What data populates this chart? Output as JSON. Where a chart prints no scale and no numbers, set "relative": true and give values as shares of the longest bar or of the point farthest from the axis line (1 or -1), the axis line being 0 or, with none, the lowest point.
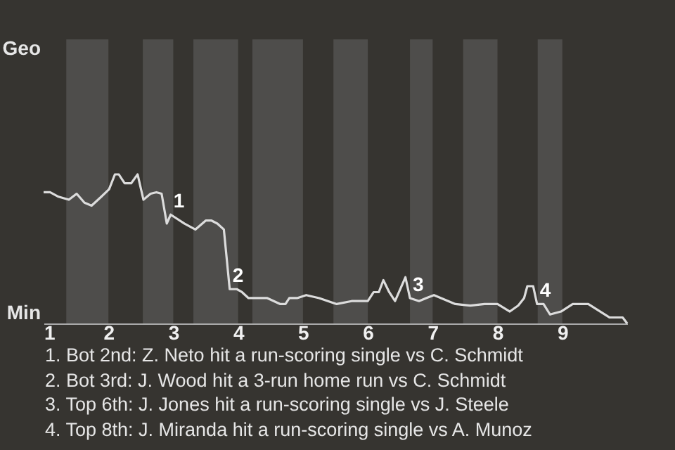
{
  "chart_data": {
    "type": "line",
    "relative": true,
    "x": [
      1,
      1.1,
      1.23,
      1.39,
      1.51,
      1.63,
      1.74,
      1.89,
      2.01,
      2.1,
      2.16,
      2.25,
      2.35,
      2.45,
      2.54,
      2.65,
      2.74,
      2.82,
      2.9,
      2.96,
      3.17,
      3.34,
      3.5,
      3.59,
      3.68,
      3.78,
      3.87,
      3.98,
      4.06,
      4.16,
      4.24,
      4.35,
      4.45,
      4.55,
      4.65,
      4.73,
      4.79,
      4.91,
      5.05,
      5.25,
      5.52,
      5.75,
      6,
      6.09,
      6.17,
      6.24,
      6.33,
      6.42,
      6.58,
      6.65,
      6.79,
      6.9,
      7.02,
      7.35,
      7.58,
      7.8,
      8,
      8.19,
      8.32,
      8.41,
      8.46,
      8.55,
      8.61,
      8.71,
      8.81,
      8.98,
      9.16,
      9.4,
      9.73,
      9.93,
      10
    ],
    "series": [
      {
        "color": "#dcdcdc",
        "values": [
          0.88,
          0.88,
          0.85,
          0.83,
          0.87,
          0.81,
          0.79,
          0.85,
          0.9,
          1,
          1,
          0.94,
          0.94,
          1,
          0.83,
          0.87,
          0.88,
          0.87,
          0.67,
          0.73,
          0.67,
          0.63,
          0.69,
          0.69,
          0.67,
          0.63,
          0.23,
          0.23,
          0.21,
          0.17,
          0.17,
          0.17,
          0.17,
          0.15,
          0.13,
          0.13,
          0.17,
          0.17,
          0.19,
          0.17,
          0.13,
          0.15,
          0.15,
          0.21,
          0.21,
          0.29,
          0.21,
          0.15,
          0.31,
          0.17,
          0.15,
          0.17,
          0.19,
          0.13,
          0.12,
          0.13,
          0.13,
          0.08,
          0.12,
          0.17,
          0.25,
          0.25,
          0.13,
          0.13,
          0.06,
          0.08,
          0.13,
          0.13,
          0.04,
          0.04,
          0
        ]
      }
    ],
    "xlim": [
      1,
      10
    ],
    "xticks": [
      1,
      2,
      3,
      4,
      5,
      6,
      7,
      8,
      9
    ],
    "marker": "none",
    "line_style": "solid",
    "bands": [
      {
        "axis": "x",
        "from": 1.35,
        "to": 2,
        "color": "#4e4d4b"
      },
      {
        "axis": "x",
        "from": 2.53,
        "to": 3,
        "color": "#4e4d4b"
      },
      {
        "axis": "x",
        "from": 3.31,
        "to": 4,
        "color": "#4e4d4b"
      },
      {
        "axis": "x",
        "from": 4.22,
        "to": 5,
        "color": "#4e4d4b"
      },
      {
        "axis": "x",
        "from": 5.47,
        "to": 6,
        "color": "#4e4d4b"
      },
      {
        "axis": "x",
        "from": 6.65,
        "to": 7,
        "color": "#4e4d4b"
      },
      {
        "axis": "x",
        "from": 7.47,
        "to": 8,
        "color": "#4e4d4b"
      },
      {
        "axis": "x",
        "from": 8.62,
        "to": 9,
        "color": "#4e4d4b"
      }
    ],
    "annotations": [
      {
        "text": "1",
        "x": 2.96,
        "y": 0.73
      },
      {
        "text": "2",
        "x": 3.87,
        "y": 0.23
      },
      {
        "text": "3",
        "x": 6.65,
        "y": 0.17
      },
      {
        "text": "4",
        "x": 8.61,
        "y": 0.13
      },
      "Geo",
      "Min",
      "1. Bot 2nd: Z. Neto hit a run-scoring single vs C. Schmidt",
      "2. Bot 3rd: J. Wood hit a 3-run home run vs C. Schmidt",
      "3. Top 6th: J. Jones hit a run-scoring single vs J. Steele",
      "4. Top 8th: J. Miranda hit a run-scoring single vs A. Munoz"
    ]
  }
}
